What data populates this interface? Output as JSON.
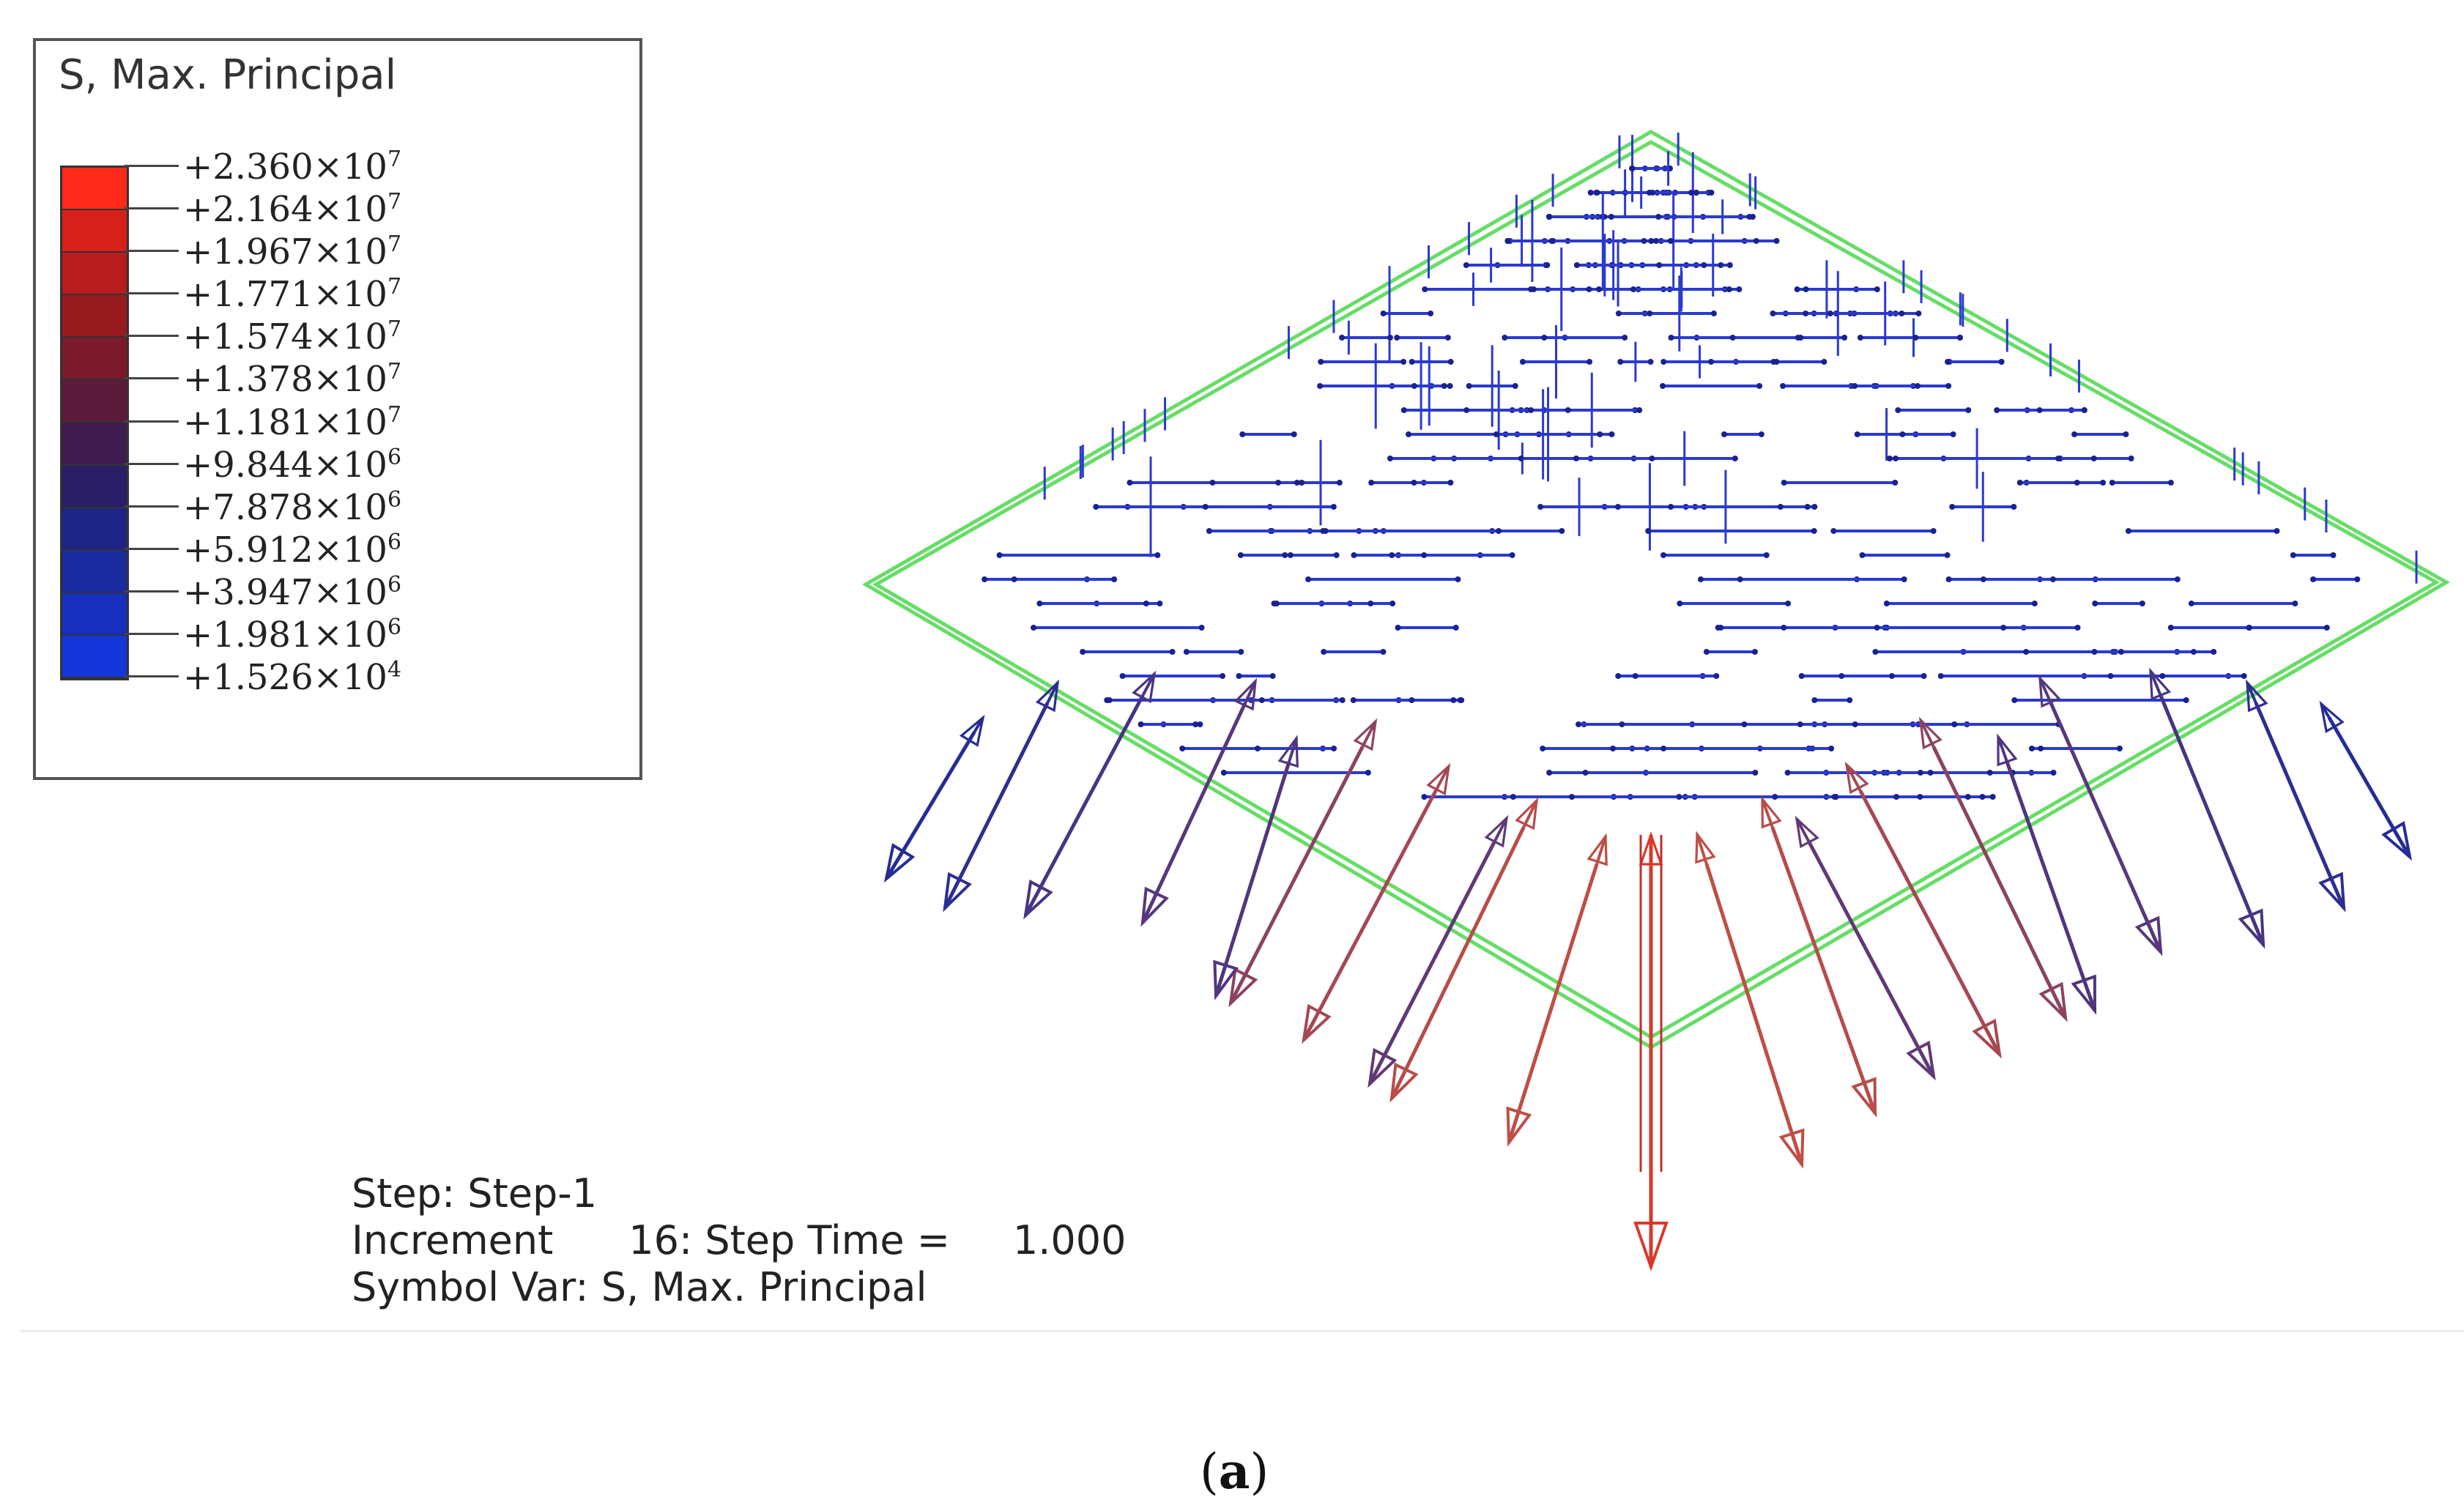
{
  "legend": {
    "title": "S, Max. Principal",
    "entries": [
      {
        "mantissa": "+2.360×10",
        "exp": "7"
      },
      {
        "mantissa": "+2.164×10",
        "exp": "7"
      },
      {
        "mantissa": "+1.967×10",
        "exp": "7"
      },
      {
        "mantissa": "+1.771×10",
        "exp": "7"
      },
      {
        "mantissa": "+1.574×10",
        "exp": "7"
      },
      {
        "mantissa": "+1.378×10",
        "exp": "7"
      },
      {
        "mantissa": "+1.181×10",
        "exp": "7"
      },
      {
        "mantissa": "+9.844×10",
        "exp": "6"
      },
      {
        "mantissa": "+7.878×10",
        "exp": "6"
      },
      {
        "mantissa": "+5.912×10",
        "exp": "6"
      },
      {
        "mantissa": "+3.947×10",
        "exp": "6"
      },
      {
        "mantissa": "+1.981×10",
        "exp": "6"
      },
      {
        "mantissa": "+1.526×10",
        "exp": "4"
      }
    ],
    "colors": [
      "#ff2a1a",
      "#d8201a",
      "#b81c1c",
      "#981b20",
      "#7a1a2a",
      "#5c1a3a",
      "#3e1c4e",
      "#2a1e66",
      "#1e2484",
      "#1a2ba0",
      "#1630bd",
      "#1536d8",
      "#1a44f5"
    ]
  },
  "info": {
    "step": "Step: Step-1",
    "increment": "Increment      16: Step Time =     1.000",
    "symbol_var": "Symbol Var: S, Max. Principal"
  },
  "caption": {
    "letter": "a",
    "open": "(",
    "close": ")"
  },
  "diagram": {
    "outline_color": "#66dd66",
    "low_color": "#2a3ad0",
    "high_color": "#c05050"
  }
}
